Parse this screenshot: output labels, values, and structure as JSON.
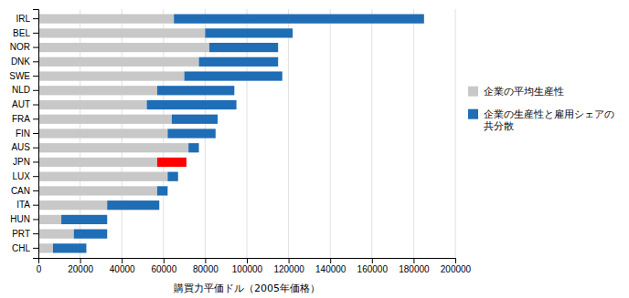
{
  "chart_data": {
    "type": "bar",
    "orientation": "horizontal",
    "stacked": true,
    "categories": [
      "IRL",
      "BEL",
      "NOR",
      "DNK",
      "SWE",
      "NLD",
      "AUT",
      "FRA",
      "FIN",
      "AUS",
      "JPN",
      "LUX",
      "CAN",
      "ITA",
      "HUN",
      "PRT",
      "CHL"
    ],
    "series": [
      {
        "name": "企業の平均生産性",
        "color": "#c8c8c8",
        "values": [
          65000,
          80000,
          82000,
          77000,
          70000,
          57000,
          52000,
          64000,
          62000,
          72000,
          57000,
          62000,
          57000,
          33000,
          11000,
          17000,
          7000
        ]
      },
      {
        "name": "企業の生産性と雇用シェアの\n共分散",
        "color": "#1f6db5",
        "values": [
          120000,
          42000,
          33000,
          38000,
          47000,
          37000,
          43000,
          22000,
          23000,
          5000,
          0,
          5000,
          5000,
          25000,
          22000,
          16000,
          16000
        ]
      },
      {
        "color": "#ff0000",
        "values": [
          0,
          0,
          0,
          0,
          0,
          0,
          0,
          0,
          0,
          0,
          14000,
          0,
          0,
          0,
          0,
          0,
          0
        ]
      }
    ],
    "xlabel": "購買力平価ドル（2005年価格）",
    "xlim": [
      0,
      200000
    ],
    "xticks": [
      0,
      20000,
      40000,
      60000,
      80000,
      100000,
      120000,
      140000,
      160000,
      180000,
      200000
    ],
    "grid": true,
    "legend": "right"
  }
}
